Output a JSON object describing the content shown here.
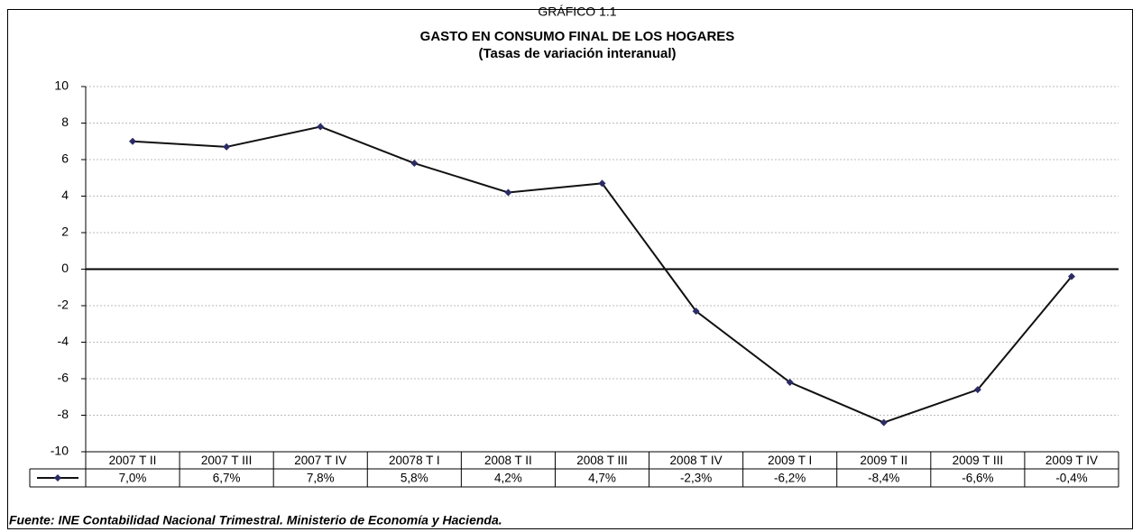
{
  "chart_data": {
    "type": "line",
    "supertitle": "GRÁFICO 1.1",
    "title": "GASTO EN CONSUMO FINAL DE LOS HOGARES",
    "subtitle": "(Tasas de variación interanual)",
    "source": "Fuente: INE Contabilidad Nacional Trimestral. Ministerio de Economía y Hacienda.",
    "categories": [
      "2007 T II",
      "2007 T III",
      "2007 T IV",
      "20078 T I",
      "2008 T II",
      "2008 T III",
      "2008 T IV",
      "2009 T I",
      "2009 T II",
      "2009 T III",
      "2009 T IV"
    ],
    "values": [
      7.0,
      6.7,
      7.8,
      5.8,
      4.2,
      4.7,
      -2.3,
      -6.2,
      -8.4,
      -6.6,
      -0.4
    ],
    "value_labels": [
      "7,0%",
      "6,7%",
      "7,8%",
      "5,8%",
      "4,2%",
      "4,7%",
      "-2,3%",
      "-6,2%",
      "-8,4%",
      "-6,6%",
      "-0,4%"
    ],
    "color": "#2b2b66",
    "line_color": "#111111",
    "ylim": [
      -10,
      10
    ],
    "yticks": [
      -10,
      -8,
      -6,
      -4,
      -2,
      0,
      2,
      4,
      6,
      8,
      10
    ],
    "grid": true
  }
}
